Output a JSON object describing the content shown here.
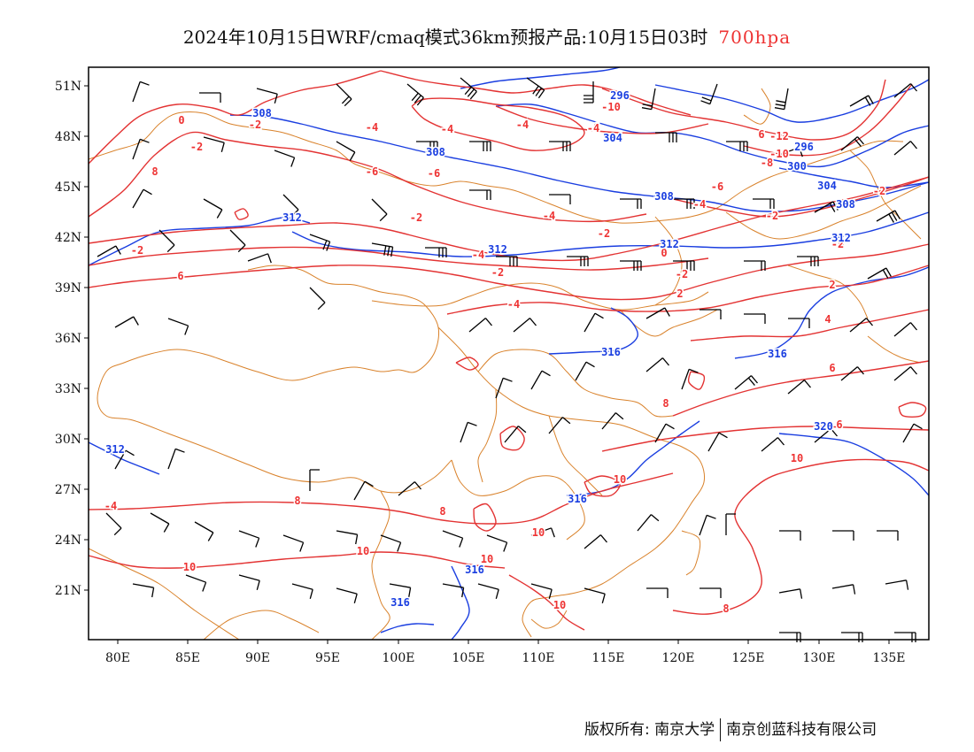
{
  "title": {
    "main": "2024年10月15日WRF/cmaq模式36km预报产品:10月15日03时",
    "level": "700hpa"
  },
  "map": {
    "lon_ticks": [
      "80E",
      "85E",
      "90E",
      "95E",
      "100E",
      "105E",
      "110E",
      "115E",
      "120E",
      "125E",
      "130E",
      "135E"
    ],
    "lat_ticks": [
      "51N",
      "48N",
      "45N",
      "42N",
      "39N",
      "36N",
      "33N",
      "30N",
      "27N",
      "24N",
      "21N"
    ],
    "temperature_labels": [
      "0",
      "-2",
      "-2",
      "-4",
      "-4",
      "-6",
      "-6",
      "-4",
      "-4",
      "-6",
      "-10",
      "-12",
      "-10",
      "-8",
      "-6",
      "-4",
      "-2",
      "-2",
      "-2",
      "-2",
      "-4",
      "-2",
      "0",
      "-2",
      "-4",
      "0",
      "2",
      "2",
      "4",
      "6",
      "6",
      "8",
      "6",
      "8",
      "8",
      "10",
      "10",
      "10",
      "10",
      "10",
      "8",
      "-4",
      "-2",
      "-4",
      "6",
      "8",
      "-2",
      "10",
      "10"
    ],
    "height_labels": [
      "308",
      "308",
      "312",
      "312",
      "312",
      "296",
      "304",
      "308",
      "300",
      "296",
      "304",
      "308",
      "312",
      "316",
      "316",
      "316",
      "316",
      "316",
      "312",
      "320"
    ],
    "colors": {
      "temperature": "#e33333",
      "height": "#1a3ee0",
      "boundary": "#d9822b",
      "wind": "#000000",
      "frame": "#000000"
    }
  },
  "footer": {
    "copyright": "版权所有: 南京大学",
    "company": "南京创蓝科技有限公司"
  }
}
